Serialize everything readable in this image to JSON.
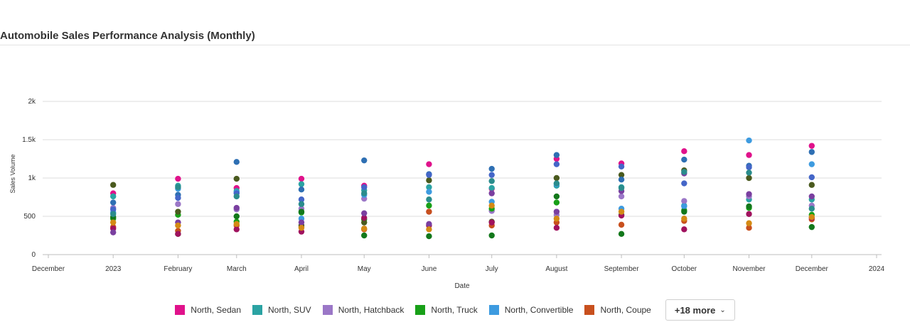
{
  "header": {
    "title": "Automobile Sales Performance Analysis (Monthly)"
  },
  "legend": {
    "more_label": "+18 more",
    "more_icon": "chevron-down-icon"
  },
  "chart_data": {
    "type": "scatter",
    "title": "Automobile Sales Performance Analysis (Monthly)",
    "xlabel": "Date",
    "ylabel": "Sales Volume",
    "ylim": [
      0,
      2000
    ],
    "xlim": [
      "2022-12-01",
      "2024-01-01"
    ],
    "yticks": [
      0,
      500,
      1000,
      1500,
      2000
    ],
    "ytick_labels": [
      "0",
      "500",
      "1k",
      "1.5k",
      "2k"
    ],
    "xticks": [
      "2022-12-01",
      "2023-01-01",
      "2023-02-01",
      "2023-03-01",
      "2023-04-01",
      "2023-05-01",
      "2023-06-01",
      "2023-07-01",
      "2023-08-01",
      "2023-09-01",
      "2023-10-01",
      "2023-11-01",
      "2023-12-01",
      "2024-01-01"
    ],
    "xtick_labels": [
      "December",
      "2023",
      "February",
      "March",
      "April",
      "May",
      "June",
      "July",
      "August",
      "September",
      "October",
      "November",
      "December",
      "2024"
    ],
    "grid": true,
    "legend_position": "bottom",
    "x": [
      "2023-01-01",
      "2023-02-01",
      "2023-03-01",
      "2023-04-01",
      "2023-05-01",
      "2023-06-01",
      "2023-07-01",
      "2023-08-01",
      "2023-09-01",
      "2023-10-01",
      "2023-11-01",
      "2023-12-01"
    ],
    "series": [
      {
        "name": "North, Sedan",
        "color": "#e0128b",
        "visible_in_legend": true,
        "values": [
          800,
          990,
          870,
          990,
          900,
          1180,
          860,
          1250,
          1190,
          1350,
          1300,
          1420
        ]
      },
      {
        "name": "North, SUV",
        "color": "#2ba3a3",
        "visible_in_legend": true,
        "values": [
          760,
          900,
          830,
          920,
          840,
          880,
          870,
          900,
          880,
          640,
          720,
          720
        ]
      },
      {
        "name": "North, Hatchback",
        "color": "#9b77c7",
        "visible_in_legend": true,
        "values": [
          610,
          660,
          590,
          600,
          730,
          560,
          570,
          520,
          760,
          700,
          760,
          640
        ]
      },
      {
        "name": "North, Truck",
        "color": "#18a018",
        "visible_in_legend": true,
        "values": [
          470,
          520,
          430,
          550,
          460,
          640,
          600,
          680,
          520,
          580,
          610,
          520
        ]
      },
      {
        "name": "North, Convertible",
        "color": "#3d9be0",
        "visible_in_legend": true,
        "values": [
          550,
          860,
          810,
          470,
          780,
          820,
          690,
          920,
          600,
          630,
          1490,
          1180
        ]
      },
      {
        "name": "North, Coupe",
        "color": "#c8501e",
        "visible_in_legend": true,
        "values": [
          360,
          310,
          380,
          360,
          330,
          560,
          380,
          420,
          390,
          440,
          350,
          460
        ]
      },
      {
        "name": "",
        "color": "#4a5a1e",
        "visible_in_legend": false,
        "values": [
          910,
          560,
          990,
          380,
          420,
          970,
          430,
          1000,
          1040,
          1100,
          1000,
          910
        ]
      },
      {
        "name": "",
        "color": "#2e6fb3",
        "visible_in_legend": false,
        "values": [
          680,
          780,
          1210,
          850,
          1230,
          1050,
          1120,
          1300,
          980,
          1240,
          1160,
          1340
        ]
      },
      {
        "name": "",
        "color": "#4466c8",
        "visible_in_legend": false,
        "values": [
          590,
          740,
          800,
          720,
          880,
          1040,
          1040,
          1180,
          1150,
          930,
          1140,
          1010
        ]
      },
      {
        "name": "",
        "color": "#13781b",
        "visible_in_legend": false,
        "values": [
          490,
          270,
          500,
          560,
          250,
          240,
          250,
          760,
          270,
          560,
          630,
          360
        ]
      },
      {
        "name": "",
        "color": "#a0125e",
        "visible_in_legend": false,
        "values": [
          340,
          270,
          330,
          300,
          480,
          380,
          420,
          350,
          510,
          330,
          530,
          480
        ]
      },
      {
        "name": "",
        "color": "#7a3fa0",
        "visible_in_legend": false,
        "values": [
          290,
          420,
          610,
          420,
          540,
          400,
          800,
          560,
          830,
          1060,
          790,
          760
        ]
      },
      {
        "name": "",
        "color": "#d48a14",
        "visible_in_legend": false,
        "values": [
          420,
          380,
          400,
          350,
          340,
          330,
          640,
          470,
          560,
          470,
          410,
          490
        ]
      },
      {
        "name": "",
        "color": "#2a8c8c",
        "visible_in_legend": false,
        "values": [
          530,
          880,
          760,
          660,
          800,
          720,
          960,
          930,
          870,
          1080,
          1070,
          600
        ]
      }
    ]
  }
}
